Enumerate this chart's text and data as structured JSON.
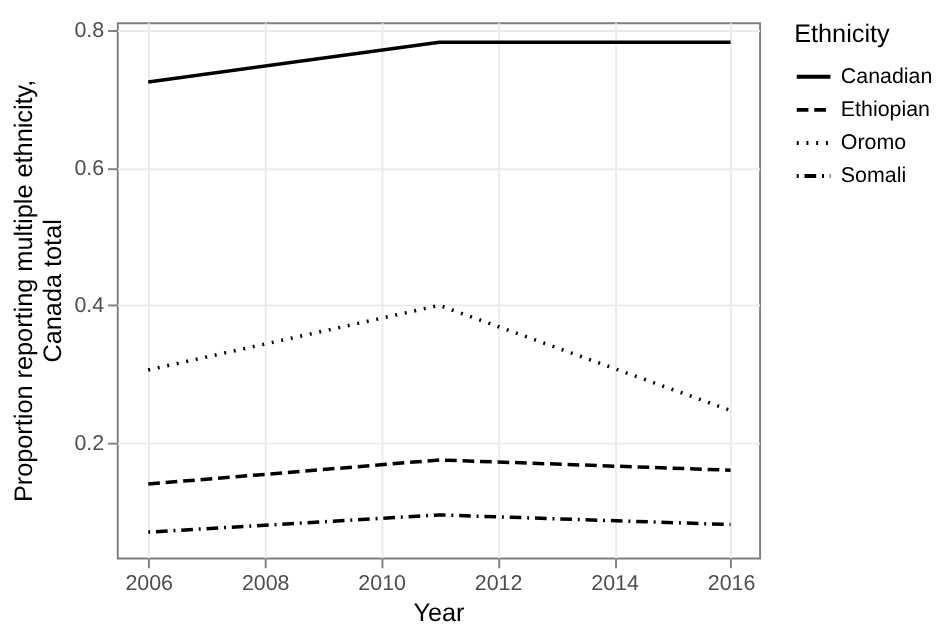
{
  "chart_data": {
    "type": "line",
    "x": [
      2006,
      2011,
      2016
    ],
    "series": [
      {
        "name": "Canadian",
        "color": "#000000",
        "line_style": "solid",
        "values": [
          0.725,
          0.783,
          0.783
        ]
      },
      {
        "name": "Ethiopian",
        "color": "#000000",
        "line_style": "dashed",
        "values": [
          0.14,
          0.175,
          0.16
        ]
      },
      {
        "name": "Oromo",
        "color": "#000000",
        "line_style": "dotted",
        "values": [
          0.306,
          0.4,
          0.247
        ]
      },
      {
        "name": "Somali",
        "color": "#000000",
        "line_style": "dashdot",
        "values": [
          0.07,
          0.095,
          0.081
        ]
      }
    ],
    "xlabel": "Year",
    "ylabel": "Proportion reporting multiple ethnicity, Canada total",
    "legend_title": "Ethnicity",
    "legend": "right",
    "xlim": [
      2005.46,
      2016.49
    ],
    "xticks": [
      2006,
      2008,
      2010,
      2012,
      2014,
      2016
    ],
    "ylim": [
      0.033,
      0.812
    ],
    "yticks": [
      0.2,
      0.4,
      0.6,
      0.8
    ],
    "grid": true,
    "marker": "none"
  }
}
